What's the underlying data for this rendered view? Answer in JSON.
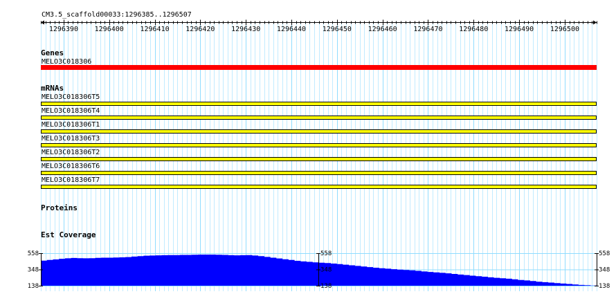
{
  "region_label": "CM3.5_scaffold00033:1296385..1296507",
  "ruler": {
    "start": 1296385,
    "end": 1296507,
    "tick_labels": [
      "1296390",
      "1296400",
      "1296410",
      "1296420",
      "1296430",
      "1296440",
      "1296450",
      "1296460",
      "1296470",
      "1296480",
      "1296490",
      "1296500"
    ]
  },
  "tracks": {
    "genes": {
      "title": "Genes",
      "features": [
        {
          "label": "MELO3C018306",
          "color": "#ff0000"
        }
      ]
    },
    "mrnas": {
      "title": "mRNAs",
      "features": [
        {
          "label": "MELO3C018306T5"
        },
        {
          "label": "MELO3C018306T4"
        },
        {
          "label": "MELO3C018306T1"
        },
        {
          "label": "MELO3C018306T3"
        },
        {
          "label": "MELO3C018306T2"
        },
        {
          "label": "MELO3C018306T6"
        },
        {
          "label": "MELO3C018306T7"
        }
      ],
      "fill_color": "#ffff00",
      "border_color": "#000000"
    },
    "proteins": {
      "title": "Proteins"
    },
    "est_coverage": {
      "title": "Est Coverage",
      "fill_color": "#0000ff"
    }
  },
  "chart_data": {
    "type": "area",
    "title": "Est Coverage",
    "axis_labels": [
      "558",
      "348",
      "138"
    ],
    "ylim": [
      138,
      558
    ],
    "x_start": 1296385,
    "x_end": 1296507,
    "values": [
      462,
      470,
      478,
      486,
      492,
      496,
      494,
      492,
      494,
      498,
      500,
      500,
      502,
      504,
      508,
      514,
      520,
      526,
      528,
      530,
      532,
      534,
      534,
      536,
      536,
      538,
      540,
      540,
      540,
      538,
      536,
      532,
      530,
      532,
      534,
      528,
      520,
      510,
      500,
      490,
      480,
      470,
      460,
      452,
      446,
      440,
      436,
      430,
      424,
      418,
      410,
      402,
      394,
      386,
      378,
      370,
      364,
      358,
      352,
      346,
      342,
      336,
      330,
      322,
      316,
      310,
      304,
      298,
      290,
      282,
      276,
      268,
      260,
      254,
      246,
      240,
      234,
      228,
      220,
      212,
      206,
      198,
      190,
      184,
      178,
      172,
      166,
      160,
      154,
      148,
      144,
      140,
      138
    ]
  },
  "grid_color": "#8fdcff"
}
